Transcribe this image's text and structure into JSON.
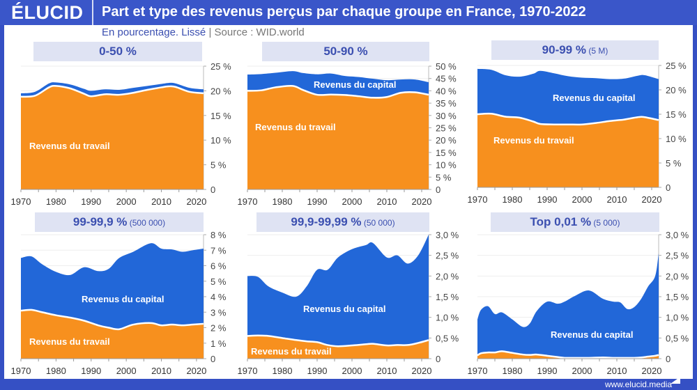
{
  "header": {
    "logo": "ÉLUCID",
    "title": "Part et type des revenus perçus par chaque groupe en France, 1970-2022"
  },
  "subtitle": {
    "unit": "En pourcentage. Lissé",
    "separator": "|",
    "source": "Source : WID.world"
  },
  "footer": {
    "url": "www.elucid.media"
  },
  "colors": {
    "labor": "#f7901e",
    "capital": "#2267d8",
    "frame": "#3550c4",
    "title_bg": "#dfe3f3",
    "title_text": "#3b4fb0"
  },
  "chart_data": [
    {
      "type": "area",
      "stacked": true,
      "title": "0-50 %",
      "title_note": "",
      "ylim": [
        0,
        25
      ],
      "yticks": [
        "0",
        "5 %",
        "10 %",
        "15 %",
        "20 %",
        "25 %"
      ],
      "ytick_values": [
        0,
        5,
        10,
        15,
        20,
        25
      ],
      "xticks": [
        "1970",
        "1980",
        "1990",
        "2000",
        "2010",
        "2020"
      ],
      "xlim": [
        1970,
        2022
      ],
      "labels": {
        "labor": "Revenus du travail",
        "capital": ""
      },
      "x": [
        1970,
        1974,
        1978,
        1980,
        1984,
        1988,
        1990,
        1994,
        1998,
        2002,
        2006,
        2010,
        2012,
        2014,
        2018,
        2022
      ],
      "total": [
        19.5,
        19.8,
        21.5,
        21.7,
        21.3,
        20.4,
        20.0,
        20.3,
        20.2,
        20.6,
        21.0,
        21.4,
        21.6,
        21.5,
        20.6,
        20.3
      ],
      "labor": [
        18.8,
        19.0,
        20.7,
        21.0,
        20.5,
        19.4,
        18.9,
        19.3,
        19.2,
        19.6,
        20.2,
        20.7,
        20.9,
        20.8,
        19.8,
        19.5
      ]
    },
    {
      "type": "area",
      "stacked": true,
      "title": "50-90 %",
      "title_note": "",
      "ylim": [
        0,
        50
      ],
      "yticks": [
        "0",
        "5 %",
        "10 %",
        "15 %",
        "20 %",
        "25 %",
        "30 %",
        "35 %",
        "40 %",
        "45 %",
        "50 %"
      ],
      "ytick_values": [
        0,
        5,
        10,
        15,
        20,
        25,
        30,
        35,
        40,
        45,
        50
      ],
      "xticks": [
        "1970",
        "1980",
        "1990",
        "2000",
        "2010",
        "2020"
      ],
      "xlim": [
        1970,
        2022
      ],
      "labels": {
        "labor": "Revenus du travail",
        "capital": "Revenus du capital"
      },
      "x": [
        1970,
        1974,
        1978,
        1983,
        1986,
        1990,
        1994,
        1998,
        2002,
        2006,
        2010,
        2014,
        2018,
        2022
      ],
      "total": [
        46.6,
        46.8,
        47.3,
        48.0,
        47.2,
        46.7,
        47.0,
        46.0,
        45.6,
        44.9,
        44.3,
        44.6,
        44.6,
        43.5
      ],
      "labor": [
        40.0,
        40.2,
        41.4,
        42.0,
        40.3,
        38.4,
        38.5,
        38.3,
        37.8,
        37.2,
        37.5,
        39.2,
        39.4,
        38.4
      ]
    },
    {
      "type": "area",
      "stacked": true,
      "title": "90-99 %",
      "title_note": "(5 M)",
      "ylim": [
        0,
        25
      ],
      "yticks": [
        "0",
        "5 %",
        "10 %",
        "15 %",
        "20 %",
        "25 %"
      ],
      "ytick_values": [
        0,
        5,
        10,
        15,
        20,
        25
      ],
      "xticks": [
        "1970",
        "1980",
        "1990",
        "2000",
        "2010",
        "2020"
      ],
      "xlim": [
        1970,
        2022
      ],
      "labels": {
        "labor": "Revenus du travail",
        "capital": "Revenus du capital"
      },
      "x": [
        1970,
        1974,
        1978,
        1982,
        1986,
        1988,
        1992,
        1996,
        2000,
        2004,
        2008,
        2012,
        2016,
        2018,
        2022
      ],
      "total": [
        24.3,
        24.1,
        23.0,
        22.7,
        23.3,
        23.9,
        23.4,
        22.8,
        22.5,
        22.4,
        22.2,
        22.3,
        22.9,
        23.0,
        22.2
      ],
      "labor": [
        15.0,
        15.1,
        14.5,
        14.3,
        13.5,
        13.0,
        12.9,
        12.9,
        12.9,
        13.2,
        13.6,
        13.9,
        14.4,
        14.4,
        13.8
      ]
    },
    {
      "type": "area",
      "stacked": true,
      "title": "99-99,9 %",
      "title_note": "(500 000)",
      "ylim": [
        0,
        8
      ],
      "yticks": [
        "0",
        "1 %",
        "2 %",
        "3 %",
        "4 %",
        "5 %",
        "6 %",
        "7 %",
        "8 %"
      ],
      "ytick_values": [
        0,
        1,
        2,
        3,
        4,
        5,
        6,
        7,
        8
      ],
      "xticks": [
        "1970",
        "1980",
        "1990",
        "2000",
        "2010",
        "2020"
      ],
      "xlim": [
        1970,
        2022
      ],
      "labels": {
        "labor": "Revenus du travail",
        "capital": "Revenus du capital"
      },
      "x": [
        1970,
        1973,
        1976,
        1980,
        1984,
        1988,
        1992,
        1995,
        1998,
        2002,
        2007,
        2010,
        2013,
        2016,
        2019,
        2022
      ],
      "total": [
        6.5,
        6.6,
        6.1,
        5.6,
        5.4,
        5.9,
        5.65,
        5.8,
        6.5,
        6.9,
        7.45,
        7.1,
        7.05,
        6.9,
        7.0,
        7.1
      ],
      "labor": [
        3.1,
        3.15,
        3.0,
        2.8,
        2.65,
        2.45,
        2.15,
        2.0,
        1.9,
        2.2,
        2.3,
        2.15,
        2.2,
        2.15,
        2.2,
        2.25
      ]
    },
    {
      "type": "area",
      "stacked": true,
      "title": "99,9-99,99 %",
      "title_note": "(50 000)",
      "ylim": [
        0,
        3
      ],
      "yticks": [
        "0",
        "0,5 %",
        "1,0 %",
        "1,5 %",
        "2,0 %",
        "2,5 %",
        "3,0 %"
      ],
      "ytick_values": [
        0,
        0.5,
        1,
        1.5,
        2,
        2.5,
        3
      ],
      "xticks": [
        "1970",
        "1980",
        "1990",
        "2000",
        "2010",
        "2020"
      ],
      "xlim": [
        1970,
        2022
      ],
      "labels": {
        "labor": "Revenus du travail",
        "capital": "Revenus du capital"
      },
      "x": [
        1970,
        1973,
        1976,
        1980,
        1984,
        1987,
        1990,
        1993,
        1996,
        2000,
        2004,
        2006,
        2010,
        2013,
        2016,
        2019,
        2022
      ],
      "total": [
        2.0,
        1.98,
        1.75,
        1.6,
        1.5,
        1.75,
        2.15,
        2.15,
        2.45,
        2.65,
        2.75,
        2.8,
        2.45,
        2.5,
        2.3,
        2.5,
        3.0
      ],
      "labor": [
        0.55,
        0.56,
        0.55,
        0.5,
        0.45,
        0.42,
        0.4,
        0.33,
        0.3,
        0.32,
        0.35,
        0.36,
        0.32,
        0.33,
        0.33,
        0.38,
        0.45
      ]
    },
    {
      "type": "area",
      "stacked": true,
      "title": "Top 0,01 %",
      "title_note": "(5 000)",
      "ylim": [
        0,
        3
      ],
      "yticks": [
        "0",
        "0,5 %",
        "1,0 %",
        "1,5 %",
        "2,0 %",
        "2,5 %",
        "3,0 %"
      ],
      "ytick_values": [
        0,
        0.5,
        1,
        1.5,
        2,
        2.5,
        3
      ],
      "xticks": [
        "1970",
        "1980",
        "1990",
        "2000",
        "2010",
        "2020"
      ],
      "xlim": [
        1970,
        2022
      ],
      "labels": {
        "labor": "",
        "capital": "Revenus du capital"
      },
      "x": [
        1970,
        1971,
        1973,
        1975,
        1977,
        1980,
        1983,
        1985,
        1987,
        1990,
        1993,
        1995,
        1998,
        2002,
        2006,
        2009,
        2011,
        2013,
        2015,
        2017,
        2019,
        2021,
        2022
      ],
      "total": [
        0.95,
        1.18,
        1.27,
        1.08,
        1.12,
        0.95,
        0.77,
        0.85,
        1.15,
        1.38,
        1.33,
        1.38,
        1.52,
        1.65,
        1.45,
        1.38,
        1.36,
        1.2,
        1.25,
        1.45,
        1.75,
        2.0,
        2.55
      ],
      "labor": [
        0.08,
        0.13,
        0.15,
        0.15,
        0.18,
        0.14,
        0.1,
        0.09,
        0.1,
        0.07,
        0.04,
        0.02,
        0.02,
        0.02,
        0.03,
        0.02,
        0.02,
        0.02,
        0.02,
        0.03,
        0.05,
        0.07,
        0.09
      ]
    }
  ]
}
